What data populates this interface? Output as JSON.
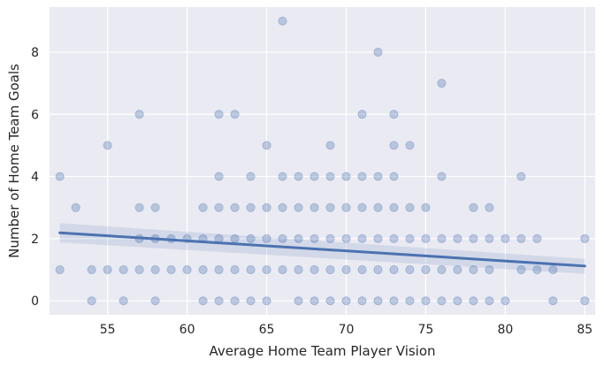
{
  "chart_data": {
    "type": "scatter",
    "xlabel": "Average Home Team Player Vision",
    "ylabel": "Number of Home Team Goals",
    "xlim": [
      51.35,
      85.65
    ],
    "ylim": [
      -0.45,
      9.45
    ],
    "xticks": [
      55,
      60,
      65,
      70,
      75,
      80,
      85
    ],
    "yticks": [
      0,
      2,
      4,
      6,
      8
    ],
    "grid": true,
    "style": "darkgrid",
    "colors": {
      "point": "#4c72b0",
      "background": "#eaeaf2",
      "grid": "#ffffff"
    },
    "points": [
      [
        52,
        1
      ],
      [
        52,
        4
      ],
      [
        53,
        3
      ],
      [
        54,
        0
      ],
      [
        54,
        1
      ],
      [
        55,
        1
      ],
      [
        55,
        5
      ],
      [
        56,
        0
      ],
      [
        56,
        1
      ],
      [
        57,
        1
      ],
      [
        57,
        2
      ],
      [
        57,
        3
      ],
      [
        57,
        6
      ],
      [
        58,
        0
      ],
      [
        58,
        1
      ],
      [
        58,
        2
      ],
      [
        58,
        3
      ],
      [
        59,
        1
      ],
      [
        59,
        2
      ],
      [
        60,
        1
      ],
      [
        60,
        2
      ],
      [
        61,
        0
      ],
      [
        61,
        1
      ],
      [
        61,
        2
      ],
      [
        61,
        3
      ],
      [
        62,
        0
      ],
      [
        62,
        1
      ],
      [
        62,
        2
      ],
      [
        62,
        3
      ],
      [
        62,
        4
      ],
      [
        62,
        6
      ],
      [
        63,
        0
      ],
      [
        63,
        1
      ],
      [
        63,
        2
      ],
      [
        63,
        3
      ],
      [
        63,
        6
      ],
      [
        64,
        0
      ],
      [
        64,
        1
      ],
      [
        64,
        2
      ],
      [
        64,
        3
      ],
      [
        64,
        4
      ],
      [
        65,
        0
      ],
      [
        65,
        1
      ],
      [
        65,
        2
      ],
      [
        65,
        3
      ],
      [
        65,
        5
      ],
      [
        66,
        1
      ],
      [
        66,
        2
      ],
      [
        66,
        3
      ],
      [
        66,
        4
      ],
      [
        66,
        9
      ],
      [
        67,
        0
      ],
      [
        67,
        1
      ],
      [
        67,
        2
      ],
      [
        67,
        3
      ],
      [
        67,
        4
      ],
      [
        68,
        0
      ],
      [
        68,
        1
      ],
      [
        68,
        2
      ],
      [
        68,
        3
      ],
      [
        68,
        4
      ],
      [
        69,
        0
      ],
      [
        69,
        1
      ],
      [
        69,
        2
      ],
      [
        69,
        3
      ],
      [
        69,
        4
      ],
      [
        69,
        5
      ],
      [
        70,
        0
      ],
      [
        70,
        1
      ],
      [
        70,
        2
      ],
      [
        70,
        3
      ],
      [
        70,
        4
      ],
      [
        71,
        0
      ],
      [
        71,
        1
      ],
      [
        71,
        2
      ],
      [
        71,
        3
      ],
      [
        71,
        4
      ],
      [
        71,
        6
      ],
      [
        72,
        0
      ],
      [
        72,
        1
      ],
      [
        72,
        2
      ],
      [
        72,
        3
      ],
      [
        72,
        4
      ],
      [
        72,
        8
      ],
      [
        73,
        0
      ],
      [
        73,
        1
      ],
      [
        73,
        2
      ],
      [
        73,
        3
      ],
      [
        73,
        4
      ],
      [
        73,
        5
      ],
      [
        73,
        6
      ],
      [
        74,
        0
      ],
      [
        74,
        1
      ],
      [
        74,
        2
      ],
      [
        74,
        3
      ],
      [
        74,
        5
      ],
      [
        75,
        0
      ],
      [
        75,
        1
      ],
      [
        75,
        2
      ],
      [
        75,
        3
      ],
      [
        76,
        0
      ],
      [
        76,
        1
      ],
      [
        76,
        2
      ],
      [
        76,
        4
      ],
      [
        76,
        7
      ],
      [
        77,
        0
      ],
      [
        77,
        1
      ],
      [
        77,
        2
      ],
      [
        78,
        0
      ],
      [
        78,
        1
      ],
      [
        78,
        2
      ],
      [
        78,
        3
      ],
      [
        79,
        0
      ],
      [
        79,
        1
      ],
      [
        79,
        2
      ],
      [
        79,
        3
      ],
      [
        80,
        0
      ],
      [
        80,
        2
      ],
      [
        81,
        1
      ],
      [
        81,
        2
      ],
      [
        81,
        4
      ],
      [
        82,
        1
      ],
      [
        82,
        2
      ],
      [
        83,
        0
      ],
      [
        83,
        1
      ],
      [
        85,
        0
      ],
      [
        85,
        2
      ]
    ],
    "regression": {
      "x": [
        52,
        85
      ],
      "y": [
        2.19,
        1.12
      ],
      "ci_upper": [
        2.5,
        1.35
      ],
      "ci_lower": [
        1.88,
        0.87
      ]
    }
  }
}
